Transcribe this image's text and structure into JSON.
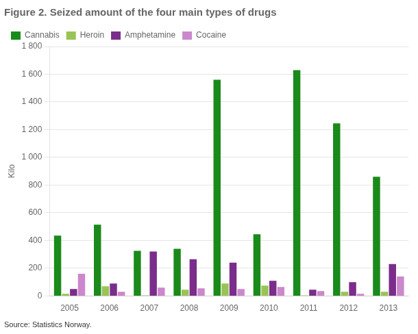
{
  "chart_data": {
    "type": "bar",
    "title": "Figure 2. Seized amount of the four main types of drugs",
    "ylabel": "Kilo",
    "source": "Source: Statistics Norway.",
    "categories": [
      "2005",
      "2006",
      "2007",
      "2008",
      "2009",
      "2010",
      "2011",
      "2012",
      "2013"
    ],
    "series": [
      {
        "name": "Cannabis",
        "color": "#1a8a1a",
        "values": [
          435,
          515,
          325,
          340,
          1560,
          445,
          1630,
          1245,
          860
        ]
      },
      {
        "name": "Heroin",
        "color": "#99c455",
        "values": [
          15,
          70,
          5,
          45,
          90,
          75,
          5,
          30,
          30
        ]
      },
      {
        "name": "Amphetamine",
        "color": "#7b2d8b",
        "values": [
          50,
          90,
          320,
          265,
          240,
          110,
          45,
          100,
          230
        ]
      },
      {
        "name": "Cocaine",
        "color": "#cc88cc",
        "values": [
          160,
          30,
          60,
          55,
          50,
          65,
          35,
          15,
          140
        ]
      }
    ],
    "ylim": [
      0,
      1800
    ],
    "yticks": [
      0,
      200,
      400,
      600,
      800,
      {
        "value": 1000,
        "label": "1 000"
      },
      {
        "value": 1200,
        "label": "1 200"
      },
      {
        "value": 1400,
        "label": "1 400"
      },
      {
        "value": 1600,
        "label": "1 600"
      },
      {
        "value": 1800,
        "label": "1 800"
      }
    ],
    "grid": true,
    "legend": "upper left"
  }
}
